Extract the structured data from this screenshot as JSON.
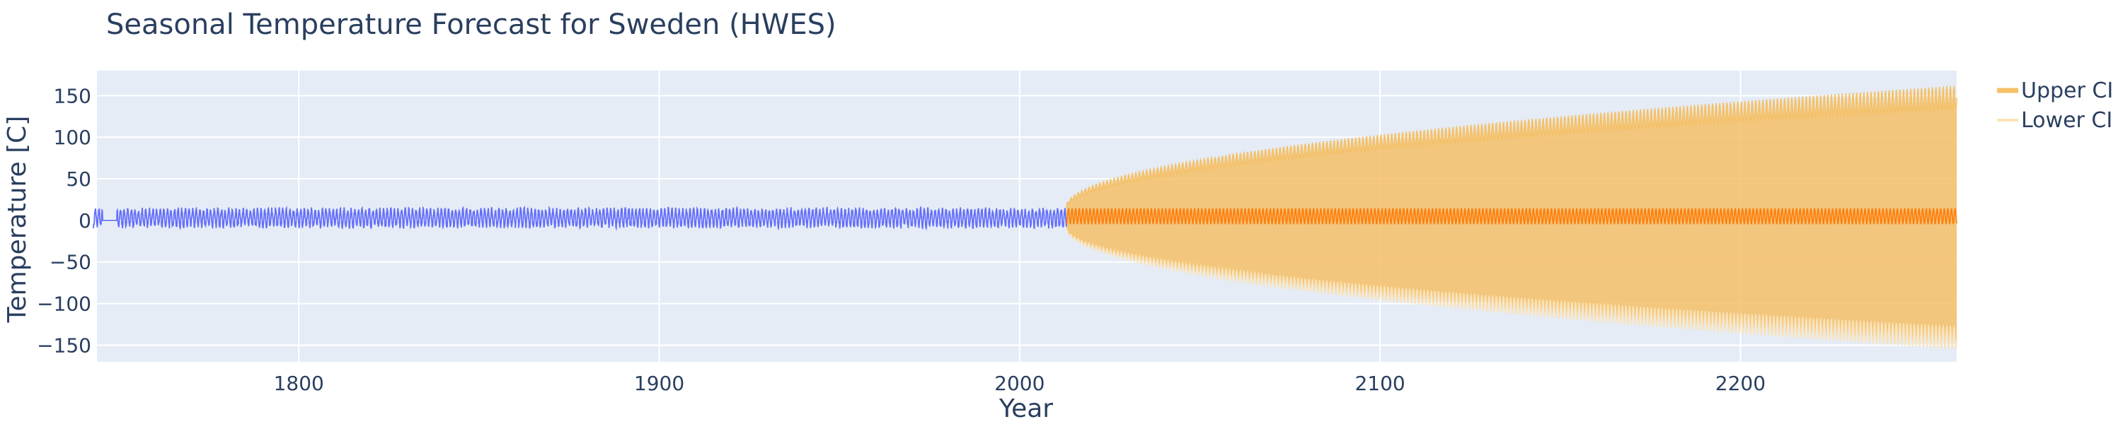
{
  "chart_data": {
    "type": "line",
    "title": "Seasonal Temperature Forecast for Sweden (HWES)",
    "xlabel": "Year",
    "ylabel": "Temperature [C]",
    "xlim": [
      1744,
      2260
    ],
    "ylim": [
      -170,
      180
    ],
    "xticks": [
      1800,
      1900,
      2000,
      2100,
      2200
    ],
    "yticks": [
      -150,
      -100,
      -50,
      0,
      50,
      100,
      150
    ],
    "ytick_labels": [
      "−150",
      "−100",
      "−50",
      "0",
      "50",
      "100",
      "150"
    ],
    "grid": true,
    "legend_position": "top-right",
    "series": [
      {
        "name": "",
        "role": "observed",
        "color": "#636efa",
        "x_start": 1743,
        "x_end": 2013,
        "mean": 3,
        "amplitude": 10,
        "period_years": 1
      },
      {
        "name": "",
        "role": "forecast",
        "color": "#ff7f0e",
        "x_start": 2013,
        "x_end": 2260,
        "mean": 5,
        "amplitude": 9,
        "period_years": 1
      },
      {
        "name": "Upper CI",
        "role": "upper_ci",
        "color": "#f5c066",
        "x_start": 2013,
        "x_end": 2260,
        "start_value": 17,
        "end_value": 162
      },
      {
        "name": "Lower CI",
        "role": "lower_ci",
        "color": "#fbe3b8",
        "x_start": 2013,
        "x_end": 2260,
        "start_value": -10,
        "end_value": -155
      }
    ]
  },
  "legend": [
    {
      "label": "Upper CI",
      "color": "#f5c066"
    },
    {
      "label": "Lower CI",
      "color": "#fbe3b8"
    }
  ]
}
